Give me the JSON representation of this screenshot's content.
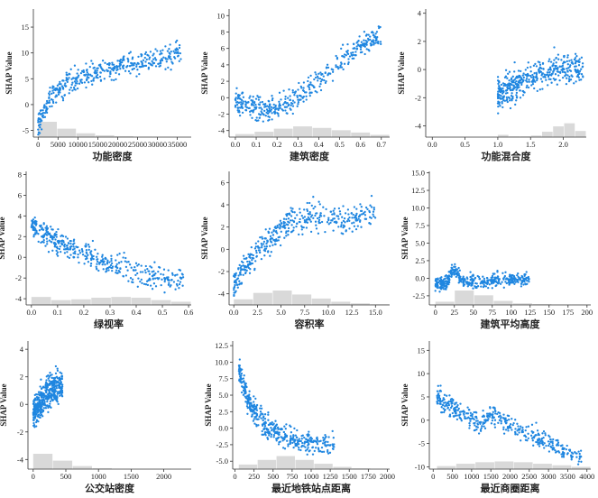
{
  "figure": {
    "ylabel": "SHAP Value",
    "point_color": "#1f86e0",
    "hist_color": "#d9d9d9"
  },
  "chart_data": [
    {
      "type": "scatter",
      "xlabel": "功能密度",
      "ylabel": "SHAP Value",
      "xlim": [
        -1200,
        38500
      ],
      "ylim": [
        -6.3,
        18.5
      ],
      "xticks": [
        0,
        5000,
        10000,
        15000,
        20000,
        25000,
        30000,
        35000
      ],
      "xtick_labels": [
        "0",
        "5000",
        "10000",
        "15000",
        "20000",
        "25000",
        "30000",
        "35000"
      ],
      "yticks": [
        -5,
        0,
        5,
        10,
        15
      ],
      "ytick_labels": [
        "-5",
        "0",
        "5",
        "10",
        "15"
      ],
      "curve": [
        [
          0,
          -4
        ],
        [
          1000,
          -2
        ],
        [
          2500,
          0.5
        ],
        [
          5000,
          2.8
        ],
        [
          8000,
          4.2
        ],
        [
          12000,
          5.5
        ],
        [
          18000,
          7
        ],
        [
          26000,
          8.5
        ],
        [
          36000,
          10
        ]
      ],
      "spread": 1.6,
      "hist": [
        1,
        0.55,
        0.25,
        0.12,
        0.06,
        0.03,
        0.02,
        0.01
      ]
    },
    {
      "type": "scatter",
      "xlabel": "建筑密度",
      "ylabel": "SHAP Value",
      "xlim": [
        -0.03,
        0.74
      ],
      "ylim": [
        -4.8,
        10.8
      ],
      "xticks": [
        0,
        0.1,
        0.2,
        0.3,
        0.4,
        0.5,
        0.6,
        0.7
      ],
      "xtick_labels": [
        "0.0",
        "0.1",
        "0.2",
        "0.3",
        "0.4",
        "0.5",
        "0.6",
        "0.7"
      ],
      "yticks": [
        -4,
        -2,
        0,
        2,
        4,
        6,
        8,
        10
      ],
      "ytick_labels": [
        "-4",
        "-2",
        "0",
        "2",
        "4",
        "6",
        "8",
        "10"
      ],
      "curve": [
        [
          0,
          -0.5
        ],
        [
          0.1,
          -1.5
        ],
        [
          0.2,
          -1.3
        ],
        [
          0.3,
          0
        ],
        [
          0.4,
          2
        ],
        [
          0.5,
          4.5
        ],
        [
          0.6,
          6.5
        ],
        [
          0.7,
          7.5
        ]
      ],
      "spread": 1.0,
      "hist": [
        0.2,
        0.35,
        0.55,
        0.7,
        0.6,
        0.45,
        0.3,
        0.15
      ]
    },
    {
      "type": "scatter",
      "xlabel": "功能混合度",
      "ylabel": "SHAP Value",
      "xlim": [
        -0.1,
        2.35
      ],
      "ylim": [
        -4.8,
        4.3
      ],
      "xticks": [
        0,
        0.5,
        1.0,
        1.5,
        2.0
      ],
      "xtick_labels": [
        "0.0",
        "0.5",
        "1.0",
        "1.5",
        "2.0"
      ],
      "yticks": [
        -4,
        -2,
        0,
        2,
        4
      ],
      "ytick_labels": [
        "-4",
        "-2",
        "0",
        "2",
        "4"
      ],
      "curve": [
        [
          1.0,
          -1.8
        ],
        [
          1.3,
          -1.0
        ],
        [
          1.6,
          -0.4
        ],
        [
          1.9,
          0.1
        ],
        [
          2.1,
          0.2
        ],
        [
          2.3,
          0.0
        ]
      ],
      "spread": 0.8,
      "hist": [
        0.15,
        0.05,
        0.05,
        0.1,
        0.35,
        0.7,
        0.9,
        0.4
      ]
    },
    {
      "type": "scatter",
      "xlabel": "绿视率",
      "ylabel": "SHAP Value",
      "xlim": [
        -0.02,
        0.61
      ],
      "ylim": [
        -4.6,
        8.3
      ],
      "xticks": [
        0,
        0.1,
        0.2,
        0.3,
        0.4,
        0.5,
        0.6
      ],
      "xtick_labels": [
        "0.0",
        "0.1",
        "0.2",
        "0.3",
        "0.4",
        "0.5",
        "0.6"
      ],
      "yticks": [
        -4,
        -2,
        0,
        2,
        4,
        6,
        8
      ],
      "ytick_labels": [
        "-4",
        "-2",
        "0",
        "2",
        "4",
        "6",
        "8"
      ],
      "curve": [
        [
          0,
          3
        ],
        [
          0.05,
          2.2
        ],
        [
          0.1,
          1.5
        ],
        [
          0.2,
          0.4
        ],
        [
          0.3,
          -0.7
        ],
        [
          0.4,
          -1.5
        ],
        [
          0.5,
          -2
        ],
        [
          0.58,
          -2.2
        ]
      ],
      "spread": 0.8,
      "hist": [
        0.5,
        0.3,
        0.35,
        0.45,
        0.5,
        0.45,
        0.3,
        0.2
      ]
    },
    {
      "type": "scatter",
      "xlabel": "容积率",
      "ylabel": "SHAP Value",
      "xlim": [
        -0.5,
        16.5
      ],
      "ylim": [
        -5.0,
        7.0
      ],
      "xticks": [
        0,
        2.5,
        5.0,
        7.5,
        10.0,
        12.5,
        15.0
      ],
      "xtick_labels": [
        "0.0",
        "2.5",
        "5.0",
        "7.5",
        "10.0",
        "12.5",
        "15.0"
      ],
      "yticks": [
        -4,
        -2,
        0,
        2,
        4,
        6
      ],
      "ytick_labels": [
        "-4",
        "-2",
        "0",
        "2",
        "4",
        "6"
      ],
      "curve": [
        [
          0,
          -3
        ],
        [
          1,
          -2
        ],
        [
          2,
          -0.7
        ],
        [
          3,
          0.3
        ],
        [
          4,
          1.2
        ],
        [
          6,
          2.3
        ],
        [
          8,
          3
        ],
        [
          10,
          3
        ],
        [
          12,
          2.5
        ],
        [
          15,
          3.5
        ]
      ],
      "spread": 0.9,
      "hist": [
        0.35,
        0.75,
        0.9,
        0.65,
        0.4,
        0.2,
        0.1,
        0.04
      ]
    },
    {
      "type": "scatter",
      "xlabel": "建筑平均高度",
      "ylabel": "SHAP Value",
      "xlim": [
        -8,
        205
      ],
      "ylim": [
        -3.8,
        15.2
      ],
      "xticks": [
        0,
        25,
        50,
        75,
        100,
        125,
        150,
        175,
        200
      ],
      "xtick_labels": [
        "0",
        "25",
        "50",
        "75",
        "100",
        "125",
        "150",
        "175",
        "200"
      ],
      "yticks": [
        -2.5,
        0,
        2.5,
        5,
        7.5,
        10,
        12.5,
        15
      ],
      "ytick_labels": [
        "-2.5",
        "0.0",
        "2.5",
        "5.0",
        "7.5",
        "10.0",
        "12.5",
        "15.0"
      ],
      "curve": [
        [
          0,
          -0.8
        ],
        [
          15,
          -0.8
        ],
        [
          22,
          1.2
        ],
        [
          28,
          0.8
        ],
        [
          35,
          -0.2
        ],
        [
          60,
          -0.5
        ],
        [
          100,
          -0.2
        ],
        [
          125,
          0
        ]
      ],
      "spread": 0.7,
      "hist": [
        0.2,
        0.9,
        0.6,
        0.25,
        0.1,
        0.05,
        0.02,
        0.02
      ]
    },
    {
      "type": "scatter",
      "xlabel": "公交站密度",
      "ylabel": "SHAP Value",
      "xlim": [
        -80,
        2420
      ],
      "ylim": [
        -4.7,
        4.6
      ],
      "xticks": [
        0,
        500,
        1000,
        1500,
        2000
      ],
      "xtick_labels": [
        "0",
        "500",
        "1000",
        "1500",
        "2000"
      ],
      "yticks": [
        -4,
        -2,
        0,
        2,
        4
      ],
      "ytick_labels": [
        "-4",
        "-2",
        "0",
        "2",
        "4"
      ],
      "curve": [
        [
          0,
          -0.6
        ],
        [
          100,
          0
        ],
        [
          200,
          0.8
        ],
        [
          300,
          1.2
        ],
        [
          450,
          1.4
        ]
      ],
      "spread": 0.8,
      "hist": [
        1,
        0.55,
        0.2,
        0.06,
        0.02,
        0.01,
        0.01,
        0.01
      ]
    },
    {
      "type": "scatter",
      "xlabel": "最近地铁站点距离",
      "ylabel": "SHAP Value",
      "xlim": [
        -30,
        2030
      ],
      "ylim": [
        -6.2,
        13.2
      ],
      "xticks": [
        0,
        250,
        500,
        750,
        1000,
        1250,
        1500,
        1750,
        2000
      ],
      "xtick_labels": [
        "0",
        "250",
        "500",
        "750",
        "1000",
        "1250",
        "1500",
        "1750",
        "2000"
      ],
      "yticks": [
        -5,
        -2.5,
        0,
        2.5,
        5,
        7.5,
        10,
        12.5
      ],
      "ytick_labels": [
        "-5.0",
        "-2.5",
        "0.0",
        "2.5",
        "5.0",
        "7.5",
        "10.0",
        "12.5"
      ],
      "curve": [
        [
          50,
          9
        ],
        [
          150,
          5
        ],
        [
          250,
          2.5
        ],
        [
          400,
          0.5
        ],
        [
          600,
          -1
        ],
        [
          800,
          -2
        ],
        [
          1000,
          -2.3
        ],
        [
          1300,
          -2.5
        ]
      ],
      "spread": 1.3,
      "hist": [
        0.3,
        0.6,
        0.85,
        0.6,
        0.35,
        0.15,
        0.05,
        0.02
      ]
    },
    {
      "type": "scatter",
      "xlabel": "最近商圈距离",
      "ylabel": "SHAP Value",
      "xlim": [
        -100,
        4100
      ],
      "ylim": [
        -10.5,
        17.0
      ],
      "xticks": [
        0,
        500,
        1000,
        1500,
        2000,
        2500,
        3000,
        3500,
        4000
      ],
      "xtick_labels": [
        "0",
        "500",
        "1000",
        "1500",
        "2000",
        "2500",
        "3000",
        "3500",
        "4000"
      ],
      "yticks": [
        -10,
        -5,
        0,
        5,
        10,
        15
      ],
      "ytick_labels": [
        "-10",
        "-5",
        "0",
        "5",
        "10",
        "15"
      ],
      "curve": [
        [
          100,
          5
        ],
        [
          400,
          3
        ],
        [
          800,
          1.5
        ],
        [
          1200,
          -1
        ],
        [
          1500,
          1.5
        ],
        [
          2000,
          -1
        ],
        [
          2500,
          -3
        ],
        [
          3000,
          -5
        ],
        [
          3500,
          -7
        ],
        [
          3900,
          -8
        ]
      ],
      "spread": 1.5,
      "hist": [
        0.2,
        0.35,
        0.45,
        0.5,
        0.45,
        0.35,
        0.25,
        0.15
      ]
    }
  ]
}
